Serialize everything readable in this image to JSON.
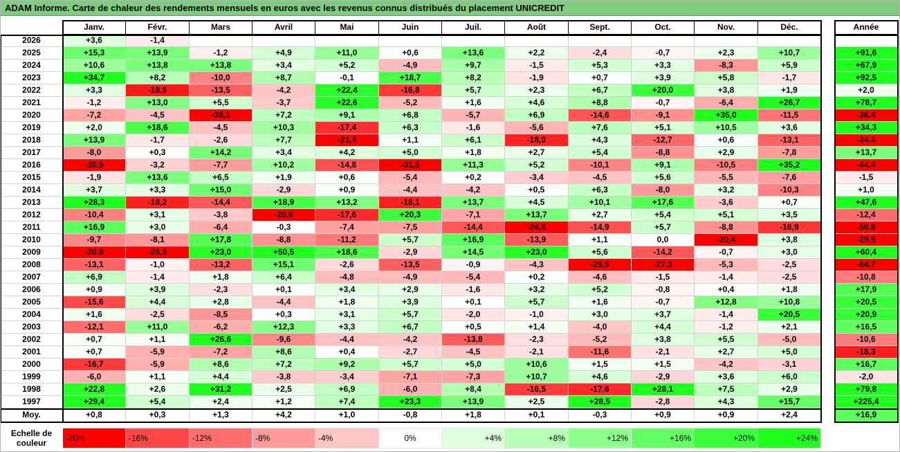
{
  "chart_data": {
    "type": "heatmap",
    "title": "ADAM Informe. Carte de chaleur des rendements mensuels en euros avec les revenus connus distribués du placement UNICREDIT",
    "columns": [
      "Janv.",
      "Févr.",
      "Mars",
      "Avril",
      "Mai",
      "Juin",
      "Juil.",
      "Août",
      "Sept.",
      "Oct.",
      "Nov.",
      "Déc."
    ],
    "total_column": "Année",
    "rows": [
      {
        "label": "2026",
        "values": [
          3.6,
          -1.4,
          null,
          null,
          null,
          null,
          null,
          null,
          null,
          null,
          null,
          null
        ],
        "total": null
      },
      {
        "label": "2025",
        "values": [
          15.3,
          13.9,
          -1.2,
          4.9,
          11.0,
          0.6,
          13.6,
          2.2,
          -2.4,
          -0.7,
          2.3,
          10.7
        ],
        "total": 91.6
      },
      {
        "label": "2024",
        "values": [
          10.6,
          13.8,
          13.8,
          3.4,
          5.2,
          -4.9,
          9.7,
          -1.5,
          5.3,
          3.3,
          -8.3,
          5.9
        ],
        "total": 67.9
      },
      {
        "label": "2023",
        "values": [
          34.7,
          8.2,
          -10.0,
          8.7,
          -0.1,
          18.7,
          8.2,
          -1.9,
          0.7,
          3.9,
          5.8,
          -1.7
        ],
        "total": 92.5
      },
      {
        "label": "2022",
        "values": [
          3.3,
          -18.6,
          -13.5,
          -4.2,
          22.4,
          -16.8,
          5.7,
          2.3,
          6.7,
          20.0,
          3.8,
          1.9
        ],
        "total": 2.0
      },
      {
        "label": "2021",
        "values": [
          -1.2,
          13.0,
          5.5,
          -3.7,
          22.6,
          -5.2,
          1.6,
          4.6,
          8.8,
          -0.7,
          -6.4,
          26.7
        ],
        "total": 78.7
      },
      {
        "label": "2020",
        "values": [
          -7.2,
          -4.5,
          -38.1,
          7.2,
          9.1,
          6.8,
          -5.7,
          6.9,
          -14.6,
          -9.1,
          35.0,
          -11.5
        ],
        "total": -36.4
      },
      {
        "label": "2019",
        "values": [
          2.0,
          18.6,
          -4.5,
          10.3,
          -17.4,
          6.3,
          -1.6,
          -5.6,
          7.6,
          5.1,
          10.5,
          3.6
        ],
        "total": 34.3
      },
      {
        "label": "2018",
        "values": [
          13.9,
          -1.7,
          -2.6,
          7.7,
          -21.4,
          1.1,
          6.1,
          -18.0,
          4.3,
          -12.7,
          0.6,
          -13.1
        ],
        "total": -34.4
      },
      {
        "label": "2017",
        "values": [
          -8.0,
          0.3,
          14.2,
          3.4,
          4.2,
          5.0,
          1.8,
          2.7,
          5.4,
          -8.8,
          2.9,
          -7.8
        ],
        "total": 13.7
      },
      {
        "label": "2016",
        "values": [
          -30.9,
          -3.2,
          -7.7,
          10.2,
          -14.8,
          -31.5,
          11.3,
          5.2,
          -10.1,
          9.1,
          -10.5,
          35.2
        ],
        "total": -44.4
      },
      {
        "label": "2015",
        "values": [
          -1.9,
          13.6,
          6.5,
          1.9,
          0.6,
          -5.4,
          0.2,
          -3.4,
          -4.5,
          5.6,
          -5.5,
          -7.6
        ],
        "total": -1.5
      },
      {
        "label": "2014",
        "values": [
          3.7,
          3.3,
          15.0,
          -2.9,
          0.9,
          -4.4,
          -4.2,
          0.5,
          6.3,
          -8.0,
          3.2,
          -10.3
        ],
        "total": 1.0
      },
      {
        "label": "2013",
        "values": [
          28.3,
          -18.2,
          -14.4,
          18.9,
          13.2,
          -18.1,
          13.7,
          4.5,
          10.1,
          17.6,
          -3.6,
          0.7
        ],
        "total": 47.6
      },
      {
        "label": "2012",
        "values": [
          -10.4,
          3.1,
          -3.8,
          -20.0,
          -17.6,
          20.3,
          -7.1,
          13.7,
          2.7,
          5.4,
          5.1,
          3.5
        ],
        "total": -12.4
      },
      {
        "label": "2011",
        "values": [
          16.9,
          3.0,
          -6.4,
          -0.3,
          -7.4,
          -7.5,
          -14.4,
          -24.6,
          -14.9,
          5.7,
          -8.8,
          -16.9
        ],
        "total": -56.6
      },
      {
        "label": "2010",
        "values": [
          -9.7,
          -8.1,
          17.8,
          -8.8,
          -11.2,
          5.7,
          16.9,
          -13.9,
          1.1,
          0.0,
          -20.4,
          3.8
        ],
        "total": -29.5
      },
      {
        "label": "2009",
        "values": [
          -20.8,
          -26.9,
          23.0,
          50.5,
          18.6,
          -2.9,
          14.5,
          23.0,
          5.6,
          -14.2,
          -0.7,
          3.0
        ],
        "total": 60.4
      },
      {
        "label": "2008",
        "values": [
          -13.1,
          -1.0,
          -13.2,
          15.1,
          -2.6,
          -13.5,
          -0.9,
          -4.3,
          -29.5,
          -27.3,
          -5.3,
          -2.5
        ],
        "total": -64.7
      },
      {
        "label": "2007",
        "values": [
          6.9,
          -1.4,
          1.8,
          6.4,
          -4.8,
          -4.9,
          -5.4,
          0.2,
          -4.6,
          -1.5,
          -1.4,
          -2.5
        ],
        "total": -10.8
      },
      {
        "label": "2006",
        "values": [
          0.9,
          3.9,
          -2.3,
          0.1,
          3.4,
          2.9,
          -1.6,
          3.2,
          5.2,
          -0.8,
          0.4,
          1.8
        ],
        "total": 17.9
      },
      {
        "label": "2005",
        "values": [
          -15.6,
          4.4,
          2.8,
          -4.4,
          1.8,
          3.9,
          0.1,
          5.7,
          1.6,
          -0.7,
          12.8,
          10.8
        ],
        "total": 20.5
      },
      {
        "label": "2004",
        "values": [
          1.6,
          -2.5,
          -8.5,
          0.3,
          3.1,
          5.7,
          -2.0,
          -1.0,
          3.0,
          3.7,
          -1.4,
          20.5
        ],
        "total": 20.9
      },
      {
        "label": "2003",
        "values": [
          -12.1,
          11.0,
          -6.2,
          12.3,
          3.3,
          6.7,
          0.5,
          1.4,
          -4.0,
          4.4,
          -1.2,
          2.1
        ],
        "total": 16.5
      },
      {
        "label": "2002",
        "values": [
          0.7,
          1.1,
          26.6,
          -9.6,
          -4.4,
          -4.2,
          -13.8,
          -2.3,
          -5.2,
          3.8,
          5.5,
          -5.0
        ],
        "total": -10.6
      },
      {
        "label": "2001",
        "values": [
          0.7,
          -5.9,
          -7.2,
          8.6,
          0.4,
          -2.7,
          -4.5,
          -2.1,
          -11.6,
          -2.1,
          2.7,
          5.0
        ],
        "total": -18.3
      },
      {
        "label": "2000",
        "values": [
          -16.7,
          -5.9,
          8.6,
          7.2,
          9.2,
          5.7,
          5.0,
          10.6,
          1.5,
          1.5,
          -4.2,
          -3.1
        ],
        "total": 16.7
      },
      {
        "label": "1999",
        "values": [
          -6.0,
          1.1,
          4.4,
          -3.8,
          -3.4,
          -7.1,
          -7.3,
          10.7,
          4.6,
          -2.9,
          3.6,
          6.0
        ],
        "total": -2.0
      },
      {
        "label": "1998",
        "values": [
          22.8,
          2.6,
          31.2,
          2.5,
          6.9,
          -6.0,
          8.4,
          -16.5,
          -17.6,
          28.1,
          7.5,
          2.9
        ],
        "total": 79.8
      },
      {
        "label": "1997",
        "values": [
          29.4,
          5.4,
          2.4,
          1.2,
          7.4,
          23.3,
          13.9,
          2.5,
          28.5,
          -2.8,
          4.3,
          15.7
        ],
        "total": 225.4
      }
    ],
    "average_row": {
      "label": "Moy.",
      "values": [
        0.8,
        0.3,
        1.3,
        4.2,
        1.0,
        -0.8,
        1.8,
        0.1,
        -0.3,
        0.9,
        0.9,
        2.4
      ],
      "total": 16.9
    },
    "color_scale": {
      "label": "Echelle de couleur",
      "stops": [
        {
          "label": "-20%",
          "value": -20,
          "color": "#ff0000"
        },
        {
          "label": "-16%",
          "value": -16,
          "color": "#ff4646"
        },
        {
          "label": "-12%",
          "value": -12,
          "color": "#ff6e6e"
        },
        {
          "label": "-8%",
          "value": -8,
          "color": "#ff9a9a"
        },
        {
          "label": "-4%",
          "value": -4,
          "color": "#ffc6c6"
        },
        {
          "label": "0%",
          "value": 0,
          "color": "#ffffff"
        },
        {
          "label": "+4%",
          "value": 4,
          "color": "#ddffdd"
        },
        {
          "label": "+8%",
          "value": 8,
          "color": "#b8ffb8"
        },
        {
          "label": "+12%",
          "value": 12,
          "color": "#8cff8c"
        },
        {
          "label": "+16%",
          "value": 16,
          "color": "#64ff64"
        },
        {
          "label": "+20%",
          "value": 20,
          "color": "#3cff3c"
        },
        {
          "label": "+24%",
          "value": 24,
          "color": "#1eff1e"
        }
      ]
    }
  }
}
